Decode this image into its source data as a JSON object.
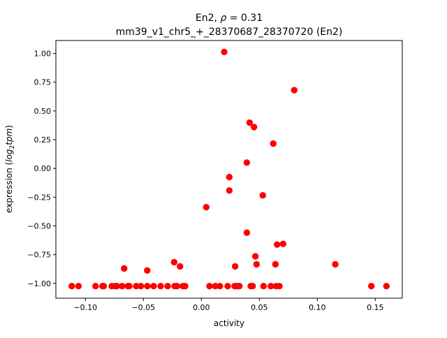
{
  "chart_data": {
    "type": "scatter",
    "title_line1_prefix": "En2, ",
    "title_rho_symbol": "ρ",
    "title_rho_value": " = 0.31",
    "title_line2": "mm39_v1_chr5_+_28370687_28370720 (En2)",
    "xlabel": "activity",
    "ylabel_prefix": "expression (",
    "ylabel_log": "log",
    "ylabel_sub": "2",
    "ylabel_tpm": "tpm",
    "ylabel_suffix": ")",
    "xlim": [
      -0.1255,
      0.1733
    ],
    "ylim": [
      -1.129,
      1.113
    ],
    "xticks": [
      -0.1,
      -0.05,
      0.0,
      0.05,
      0.1,
      0.15
    ],
    "xtick_labels": [
      "−0.10",
      "−0.05",
      "0.00",
      "0.05",
      "0.10",
      "0.15"
    ],
    "yticks": [
      1.0,
      0.75,
      0.5,
      0.25,
      0.0,
      -0.25,
      -0.5,
      -0.75,
      -1.0
    ],
    "ytick_labels": [
      "1.00",
      "0.75",
      "0.50",
      "0.25",
      "0.00",
      "−0.25",
      "−0.50",
      "−0.75",
      "−1.00"
    ],
    "grid": false,
    "marker_color": "#ff0000",
    "points": [
      [
        -0.1118,
        -1.024
      ],
      [
        -0.106,
        -1.024
      ],
      [
        -0.0913,
        -1.024
      ],
      [
        -0.0853,
        -1.024
      ],
      [
        -0.0843,
        -1.024
      ],
      [
        -0.0773,
        -1.024
      ],
      [
        -0.0743,
        -1.024
      ],
      [
        -0.0729,
        -1.024
      ],
      [
        -0.0683,
        -1.024
      ],
      [
        -0.0633,
        -1.024
      ],
      [
        -0.0622,
        -1.024
      ],
      [
        -0.0562,
        -1.024
      ],
      [
        -0.0522,
        -1.024
      ],
      [
        -0.0466,
        -1.024
      ],
      [
        -0.0412,
        -1.024
      ],
      [
        -0.0351,
        -1.024
      ],
      [
        -0.0291,
        -1.024
      ],
      [
        -0.0231,
        -1.024
      ],
      [
        -0.0211,
        -1.024
      ],
      [
        -0.016,
        -1.024
      ],
      [
        -0.014,
        -1.024
      ],
      [
        0.007,
        -1.024
      ],
      [
        0.012,
        -1.024
      ],
      [
        0.016,
        -1.024
      ],
      [
        0.0227,
        -1.024
      ],
      [
        0.0287,
        -1.024
      ],
      [
        0.0307,
        -1.024
      ],
      [
        0.0328,
        -1.024
      ],
      [
        0.0426,
        -1.024
      ],
      [
        0.0442,
        -1.024
      ],
      [
        0.0536,
        -1.024
      ],
      [
        0.0599,
        -1.024
      ],
      [
        0.0643,
        -1.024
      ],
      [
        0.0673,
        -1.024
      ],
      [
        0.1466,
        -1.024
      ],
      [
        0.1596,
        -1.024
      ],
      [
        -0.0666,
        -0.87
      ],
      [
        -0.0467,
        -0.888
      ],
      [
        -0.0235,
        -0.816
      ],
      [
        -0.0184,
        -0.852
      ],
      [
        0.0291,
        -0.852
      ],
      [
        0.0466,
        -0.765
      ],
      [
        0.0476,
        -0.834
      ],
      [
        0.0639,
        -0.834
      ],
      [
        0.1155,
        -0.834
      ],
      [
        0.0197,
        1.014
      ],
      [
        0.0801,
        0.681
      ],
      [
        0.0416,
        0.398
      ],
      [
        0.0454,
        0.36
      ],
      [
        0.062,
        0.216
      ],
      [
        0.0392,
        0.051
      ],
      [
        0.0241,
        -0.075
      ],
      [
        0.0241,
        -0.192
      ],
      [
        0.053,
        -0.234
      ],
      [
        0.0042,
        -0.337
      ],
      [
        0.0392,
        -0.559
      ],
      [
        0.0653,
        -0.662
      ],
      [
        0.0705,
        -0.656
      ]
    ]
  }
}
